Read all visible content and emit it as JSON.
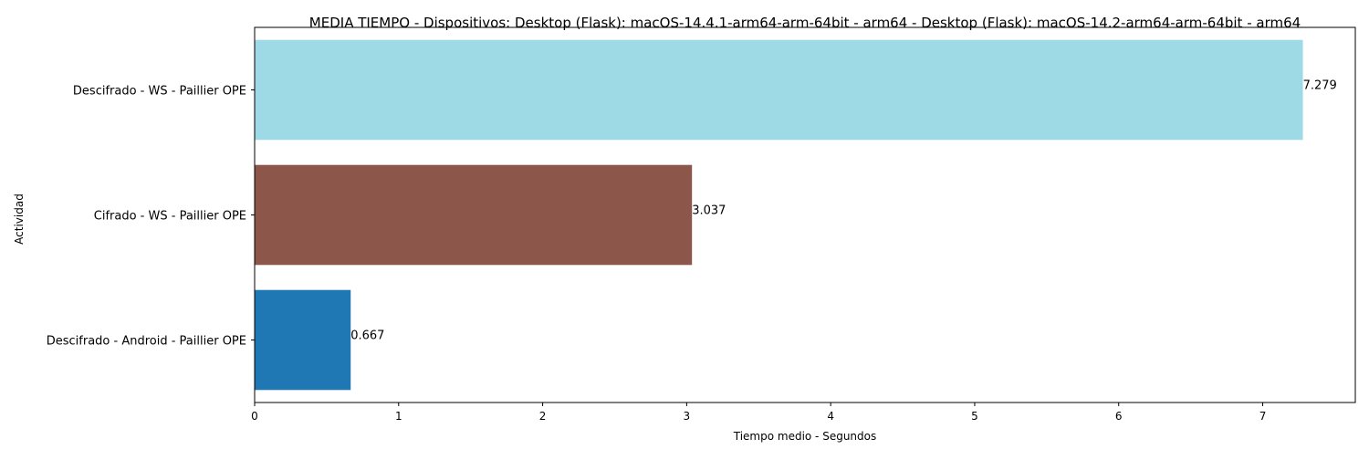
{
  "chart_data": {
    "type": "bar",
    "orientation": "horizontal",
    "title": "MEDIA TIEMPO - Dispositivos: Desktop (Flask): macOS-14.4.1-arm64-arm-64bit - arm64 - Desktop (Flask): macOS-14.2-arm64-arm-64bit - arm64",
    "xlabel": "Tiempo medio - Segundos",
    "ylabel": "Actividad",
    "categories": [
      "Descifrado - Android - Paillier OPE",
      "Cifrado - WS - Paillier OPE",
      "Descifrado - WS - Paillier OPE"
    ],
    "values": [
      0.667,
      3.037,
      7.279
    ],
    "value_labels": [
      "0.667",
      "3.037",
      "7.279"
    ],
    "colors": [
      "#1f77b4",
      "#8c564b",
      "#9edae5"
    ],
    "xlim": [
      0,
      7.643
    ],
    "xticks": [
      0,
      1,
      2,
      3,
      4,
      5,
      6,
      7
    ],
    "xtick_labels": [
      "0",
      "1",
      "2",
      "3",
      "4",
      "5",
      "6",
      "7"
    ],
    "grid": false
  }
}
